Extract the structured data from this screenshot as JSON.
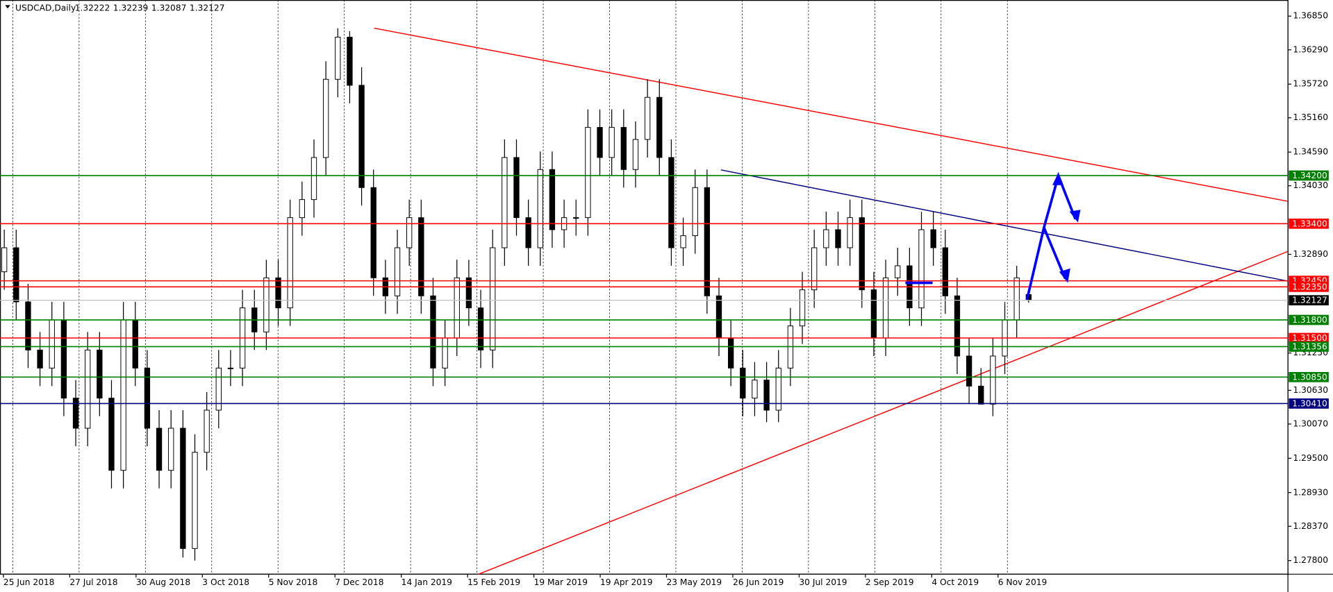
{
  "chart_data": {
    "type": "candlestick",
    "title": "USDCAD,Daily",
    "ohlc": [
      1.32222,
      1.32239,
      1.32087,
      1.32127
    ],
    "ylim": [
      1.27574,
      1.37118
    ],
    "yticks": [
      {
        "value": 1.3685,
        "label": "1.36850"
      },
      {
        "value": 1.3629,
        "label": "1.36290"
      },
      {
        "value": 1.3572,
        "label": "1.35720"
      },
      {
        "value": 1.3516,
        "label": "1.35160"
      },
      {
        "value": 1.3459,
        "label": "1.34590"
      },
      {
        "value": 1.3403,
        "label": "1.34030"
      },
      {
        "value": 1.3289,
        "label": "1.32890"
      },
      {
        "value": 1.3125,
        "label": "1.31250"
      },
      {
        "value": 1.3063,
        "label": "1.30630"
      },
      {
        "value": 1.3007,
        "label": "1.30070"
      },
      {
        "value": 1.295,
        "label": "1.29500"
      },
      {
        "value": 1.2893,
        "label": "1.28930"
      },
      {
        "value": 1.2837,
        "label": "1.28370"
      },
      {
        "value": 1.278,
        "label": "1.27800"
      }
    ],
    "xticks": [
      "25 Jun 2018",
      "27 Jul 2018",
      "30 Aug 2018",
      "3 Oct 2018",
      "5 Nov 2018",
      "7 Dec 2018",
      "14 Jan 2019",
      "15 Feb 2019",
      "19 Mar 2019",
      "19 Apr 2019",
      "23 May 2019",
      "26 Jun 2019",
      "30 Jul 2019",
      "2 Sep 2019",
      "4 Oct 2019",
      "6 Nov 2019"
    ],
    "grid": true,
    "candles": {
      "open": [
        1.326,
        1.33,
        1.321,
        1.313,
        1.31,
        1.318,
        1.305,
        1.3,
        1.313,
        1.305,
        1.293,
        1.318,
        1.31,
        1.3,
        1.293,
        1.3,
        1.28,
        1.296,
        1.303,
        1.31,
        1.31,
        1.32,
        1.316,
        1.325,
        1.32,
        1.335,
        1.338,
        1.345,
        1.358,
        1.365,
        1.357,
        1.34,
        1.325,
        1.322,
        1.33,
        1.335,
        1.322,
        1.31,
        1.315,
        1.325,
        1.32,
        1.313,
        1.33,
        1.345,
        1.335,
        1.33,
        1.343,
        1.333,
        1.335,
        1.335,
        1.35,
        1.345,
        1.35,
        1.343,
        1.348,
        1.355,
        1.345,
        1.33,
        1.332,
        1.34,
        1.322,
        1.315,
        1.31,
        1.305,
        1.308,
        1.303,
        1.31,
        1.317,
        1.323,
        1.33,
        1.333,
        1.33,
        1.335,
        1.323,
        1.315,
        1.325,
        1.327,
        1.32,
        1.333,
        1.33,
        1.322,
        1.312,
        1.307,
        1.304,
        1.312,
        1.318,
        1.32222
      ],
      "high": [
        1.333,
        1.333,
        1.324,
        1.316,
        1.321,
        1.321,
        1.308,
        1.316,
        1.316,
        1.308,
        1.321,
        1.321,
        1.313,
        1.303,
        1.303,
        1.303,
        1.299,
        1.306,
        1.313,
        1.313,
        1.323,
        1.323,
        1.328,
        1.328,
        1.338,
        1.341,
        1.348,
        1.361,
        1.3665,
        1.366,
        1.36,
        1.343,
        1.328,
        1.333,
        1.338,
        1.338,
        1.325,
        1.318,
        1.328,
        1.328,
        1.323,
        1.333,
        1.348,
        1.348,
        1.338,
        1.346,
        1.346,
        1.338,
        1.338,
        1.353,
        1.353,
        1.353,
        1.353,
        1.351,
        1.358,
        1.358,
        1.348,
        1.335,
        1.343,
        1.343,
        1.325,
        1.318,
        1.313,
        1.311,
        1.311,
        1.313,
        1.32,
        1.326,
        1.333,
        1.336,
        1.336,
        1.338,
        1.338,
        1.326,
        1.328,
        1.33,
        1.33,
        1.336,
        1.336,
        1.333,
        1.325,
        1.315,
        1.31,
        1.315,
        1.321,
        1.327,
        1.32239
      ],
      "low": [
        1.323,
        1.318,
        1.31,
        1.307,
        1.307,
        1.302,
        1.297,
        1.297,
        1.302,
        1.29,
        1.29,
        1.307,
        1.297,
        1.29,
        1.29,
        1.2785,
        1.278,
        1.293,
        1.3,
        1.307,
        1.307,
        1.313,
        1.313,
        1.317,
        1.317,
        1.332,
        1.335,
        1.342,
        1.355,
        1.354,
        1.337,
        1.322,
        1.319,
        1.319,
        1.327,
        1.319,
        1.307,
        1.307,
        1.312,
        1.317,
        1.31,
        1.31,
        1.327,
        1.332,
        1.327,
        1.327,
        1.33,
        1.33,
        1.332,
        1.332,
        1.342,
        1.342,
        1.34,
        1.34,
        1.345,
        1.342,
        1.327,
        1.327,
        1.329,
        1.319,
        1.312,
        1.307,
        1.302,
        1.302,
        1.301,
        1.301,
        1.307,
        1.314,
        1.32,
        1.327,
        1.327,
        1.327,
        1.32,
        1.312,
        1.312,
        1.322,
        1.317,
        1.317,
        1.327,
        1.319,
        1.309,
        1.304,
        1.3043,
        1.302,
        1.309,
        1.315,
        1.32087
      ],
      "close": [
        1.33,
        1.321,
        1.313,
        1.31,
        1.318,
        1.305,
        1.3,
        1.313,
        1.305,
        1.293,
        1.318,
        1.31,
        1.3,
        1.293,
        1.3,
        1.28,
        1.296,
        1.303,
        1.31,
        1.31,
        1.32,
        1.316,
        1.325,
        1.32,
        1.335,
        1.338,
        1.345,
        1.358,
        1.365,
        1.357,
        1.34,
        1.325,
        1.322,
        1.33,
        1.335,
        1.322,
        1.31,
        1.315,
        1.325,
        1.32,
        1.313,
        1.33,
        1.345,
        1.335,
        1.33,
        1.343,
        1.333,
        1.335,
        1.335,
        1.35,
        1.345,
        1.35,
        1.343,
        1.348,
        1.355,
        1.345,
        1.33,
        1.332,
        1.34,
        1.322,
        1.315,
        1.31,
        1.305,
        1.308,
        1.303,
        1.31,
        1.317,
        1.323,
        1.33,
        1.333,
        1.33,
        1.335,
        1.323,
        1.315,
        1.325,
        1.327,
        1.32,
        1.333,
        1.33,
        1.322,
        1.312,
        1.307,
        1.304,
        1.312,
        1.318,
        1.325,
        1.32127
      ]
    },
    "levels": [
      {
        "value": 1.342,
        "label": "1.34200",
        "color": "#008000"
      },
      {
        "value": 1.334,
        "label": "1.33400",
        "color": "#ff0000"
      },
      {
        "value": 1.3245,
        "label": "1.32450",
        "color": "#ff0000"
      },
      {
        "value": 1.3235,
        "label": "1.32350",
        "color": "#ff0000"
      },
      {
        "value": 1.32127,
        "label": "1.32127",
        "color": "#c0c0c0"
      },
      {
        "value": 1.318,
        "label": "1.31800",
        "color": "#008000"
      },
      {
        "value": 1.315,
        "label": "1.31500",
        "color": "#ff0000"
      },
      {
        "value": 1.31356,
        "label": "1.31356",
        "color": "#008000"
      },
      {
        "value": 1.3085,
        "label": "1.30850",
        "color": "#008000"
      },
      {
        "value": 1.3041,
        "label": "1.30410",
        "color": "#000080"
      }
    ],
    "trendlines": [
      {
        "start": 1.3665,
        "end": 1.33772,
        "color": "#ff0000"
      },
      {
        "start": 1.27574,
        "end": 1.32939,
        "color": "#ff0000"
      },
      {
        "start": 1.34294,
        "end": 1.32445,
        "color": "#000080"
      }
    ]
  }
}
